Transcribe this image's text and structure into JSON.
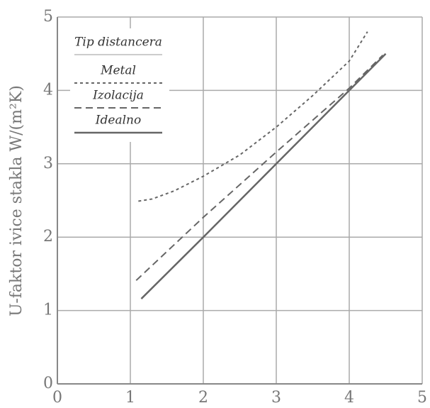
{
  "chart_data": {
    "type": "line",
    "y_label": "U-faktor ivice stakla W/(m²K)",
    "xlim": [
      0,
      5
    ],
    "ylim": [
      0,
      5
    ],
    "xticks": [
      0,
      1,
      2,
      3,
      4,
      5
    ],
    "yticks": [
      0,
      1,
      2,
      3,
      4,
      5
    ],
    "grid": true,
    "legend": "upper left",
    "legend_title": "Tip distancera",
    "series": [
      {
        "name": "Metal",
        "color": "#666666",
        "line_style": "dotted",
        "x": [
          1.11,
          1.3,
          1.6,
          2.0,
          2.5,
          3.0,
          3.5,
          4.0,
          4.25
        ],
        "values": [
          2.49,
          2.52,
          2.63,
          2.83,
          3.12,
          3.5,
          3.93,
          4.4,
          4.8
        ]
      },
      {
        "name": "Izolacija",
        "color": "#666666",
        "line_style": "dashed",
        "x": [
          1.08,
          2.0,
          3.0,
          4.0,
          4.46
        ],
        "values": [
          1.41,
          2.27,
          3.16,
          4.03,
          4.48
        ]
      },
      {
        "name": "Idealno",
        "color": "#666666",
        "line_style": "solid",
        "x": [
          1.15,
          2.0,
          3.0,
          4.0,
          4.5
        ],
        "values": [
          1.16,
          2.0,
          3.0,
          4.0,
          4.5
        ]
      }
    ]
  }
}
